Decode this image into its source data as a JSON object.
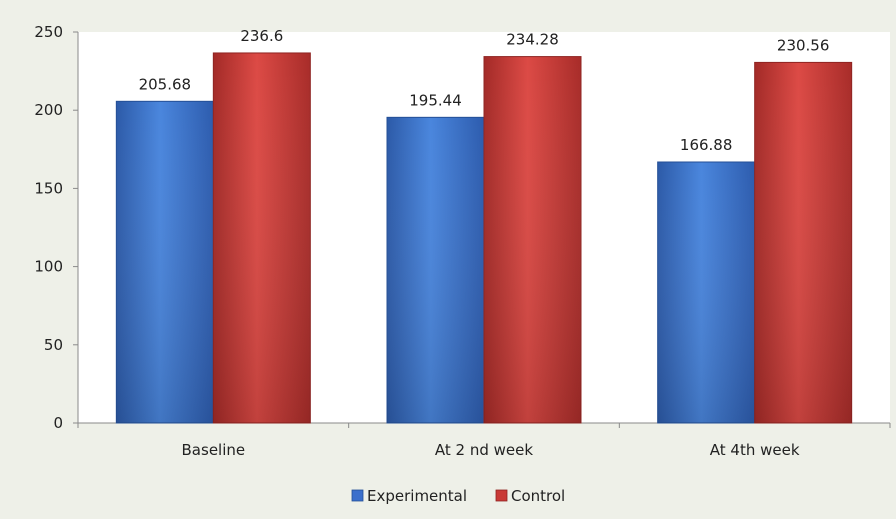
{
  "chart_data": {
    "type": "bar",
    "categories": [
      "Baseline",
      "At 2 nd week",
      "At 4th week"
    ],
    "series": [
      {
        "name": "Experimental",
        "values": [
          205.68,
          195.44,
          166.88
        ],
        "color": "#3b6fcc",
        "label_text": [
          "205.68",
          "195.44",
          "166.88"
        ]
      },
      {
        "name": "Control",
        "values": [
          236.6,
          234.28,
          230.56
        ],
        "color": "#c93a36",
        "label_text": [
          "236.6",
          "234.28",
          "230.56"
        ]
      }
    ],
    "ylim": [
      0,
      250
    ],
    "yticks": [
      0,
      50,
      100,
      150,
      200,
      250
    ],
    "ytick_labels": [
      "0",
      "50",
      "100",
      "150",
      "200",
      "250"
    ],
    "grid": false,
    "legend_position": "bottom",
    "title": "",
    "xlabel": "",
    "ylabel": ""
  }
}
